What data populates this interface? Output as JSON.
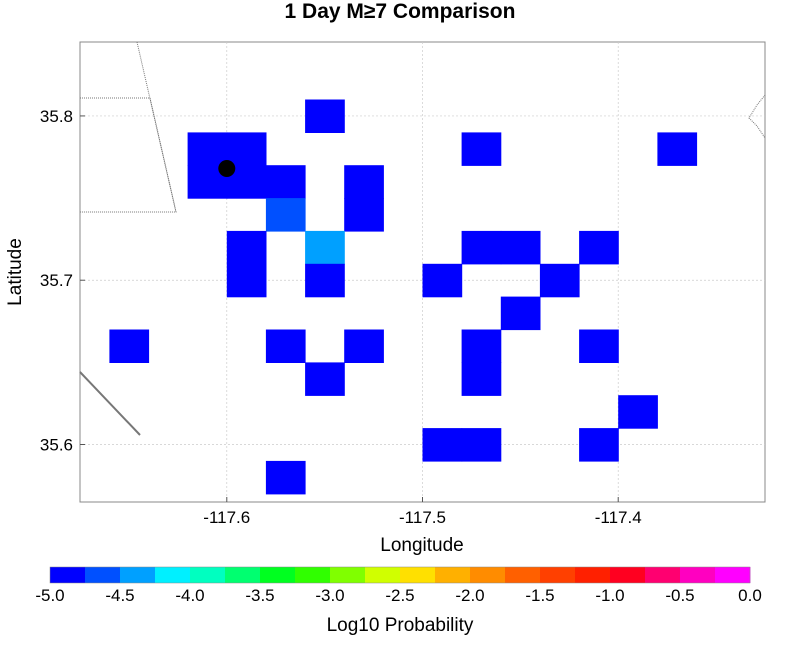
{
  "chart_data": {
    "type": "heatmap",
    "title": "1 Day M≥7 Comparison",
    "xlabel": "Longitude",
    "ylabel": "Latitude",
    "xlim": [
      -117.675,
      -117.325
    ],
    "ylim": [
      35.565,
      35.845
    ],
    "xticks": [
      -117.6,
      -117.5,
      -117.4
    ],
    "yticks": [
      35.6,
      35.7,
      35.8
    ],
    "xtick_labels": [
      "-117.6",
      "-117.5",
      "-117.4"
    ],
    "ytick_labels": [
      "35.6",
      "35.7",
      "35.8"
    ],
    "grid": true,
    "cell_size_deg": 0.02,
    "cells": [
      {
        "lon": -117.55,
        "lat": 35.8,
        "value": -5.0
      },
      {
        "lon": -117.61,
        "lat": 35.78,
        "value": -5.0
      },
      {
        "lon": -117.59,
        "lat": 35.78,
        "value": -5.0
      },
      {
        "lon": -117.47,
        "lat": 35.78,
        "value": -5.0
      },
      {
        "lon": -117.37,
        "lat": 35.78,
        "value": -5.0
      },
      {
        "lon": -117.61,
        "lat": 35.76,
        "value": -5.0
      },
      {
        "lon": -117.59,
        "lat": 35.76,
        "value": -5.0
      },
      {
        "lon": -117.57,
        "lat": 35.76,
        "value": -5.0
      },
      {
        "lon": -117.53,
        "lat": 35.76,
        "value": -5.0
      },
      {
        "lon": -117.57,
        "lat": 35.74,
        "value": -4.6
      },
      {
        "lon": -117.53,
        "lat": 35.74,
        "value": -5.0
      },
      {
        "lon": -117.59,
        "lat": 35.72,
        "value": -5.0
      },
      {
        "lon": -117.55,
        "lat": 35.72,
        "value": -4.3
      },
      {
        "lon": -117.47,
        "lat": 35.72,
        "value": -5.0
      },
      {
        "lon": -117.45,
        "lat": 35.72,
        "value": -5.0
      },
      {
        "lon": -117.41,
        "lat": 35.72,
        "value": -5.0
      },
      {
        "lon": -117.59,
        "lat": 35.7,
        "value": -5.0
      },
      {
        "lon": -117.55,
        "lat": 35.7,
        "value": -5.0
      },
      {
        "lon": -117.49,
        "lat": 35.7,
        "value": -5.0
      },
      {
        "lon": -117.43,
        "lat": 35.7,
        "value": -5.0
      },
      {
        "lon": -117.45,
        "lat": 35.68,
        "value": -5.0
      },
      {
        "lon": -117.65,
        "lat": 35.66,
        "value": -5.0
      },
      {
        "lon": -117.57,
        "lat": 35.66,
        "value": -5.0
      },
      {
        "lon": -117.53,
        "lat": 35.66,
        "value": -5.0
      },
      {
        "lon": -117.47,
        "lat": 35.66,
        "value": -5.0
      },
      {
        "lon": -117.41,
        "lat": 35.66,
        "value": -5.0
      },
      {
        "lon": -117.55,
        "lat": 35.64,
        "value": -5.0
      },
      {
        "lon": -117.47,
        "lat": 35.64,
        "value": -5.0
      },
      {
        "lon": -117.39,
        "lat": 35.62,
        "value": -5.0
      },
      {
        "lon": -117.49,
        "lat": 35.6,
        "value": -5.0
      },
      {
        "lon": -117.47,
        "lat": 35.6,
        "value": -5.0
      },
      {
        "lon": -117.41,
        "lat": 35.6,
        "value": -5.0
      },
      {
        "lon": -117.57,
        "lat": 35.58,
        "value": -5.0
      }
    ],
    "marker": {
      "lon": -117.6,
      "lat": 35.768,
      "symbol": "filled-circle",
      "color": "#000000"
    },
    "colorbar": {
      "label": "Log10 Probability",
      "range": [
        -5.0,
        0.0
      ],
      "tick_labels": [
        "-5.0",
        "-4.5",
        "-4.0",
        "-3.5",
        "-3.0",
        "-2.5",
        "-2.0",
        "-1.5",
        "-1.0",
        "-0.5",
        "0.0"
      ],
      "colors": [
        "#0000ff",
        "#0050ff",
        "#00a0ff",
        "#00f0ff",
        "#00ffc0",
        "#00ff70",
        "#00ff20",
        "#30ff00",
        "#80ff00",
        "#d0ff00",
        "#ffe000",
        "#ffb000",
        "#ff8c00",
        "#ff6000",
        "#ff4000",
        "#ff2000",
        "#ff0020",
        "#ff0070",
        "#ff00c0",
        "#ff00ff"
      ]
    }
  }
}
